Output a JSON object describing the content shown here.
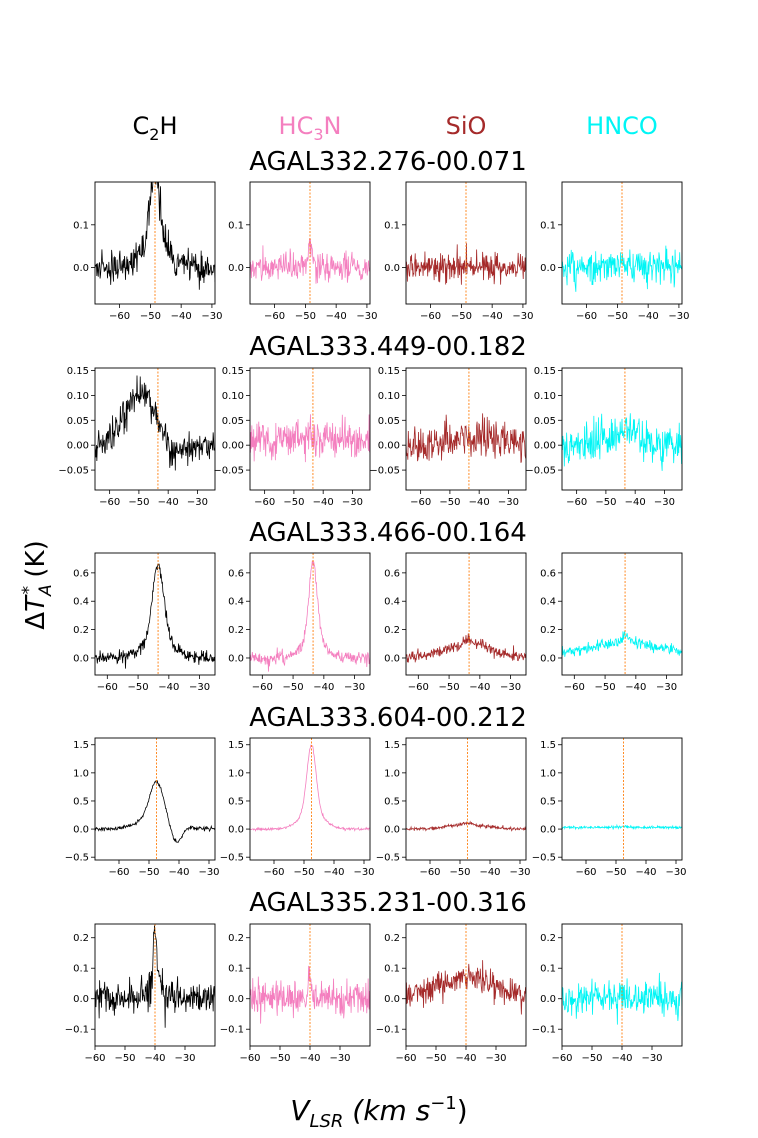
{
  "colors": {
    "C2H": "#000000",
    "HC3N": "#f47fbf",
    "SiO": "#a52a2a",
    "HNCO": "#00f5f5",
    "vline": "#ff7f0e"
  },
  "chart_data": {
    "type": "line",
    "title": "",
    "column_headers": [
      {
        "molecule": "C2H",
        "label_main": "C",
        "label_sub": "2",
        "label_tail": "H"
      },
      {
        "molecule": "HC3N",
        "label_main": "HC",
        "label_sub": "3",
        "label_tail": "N"
      },
      {
        "molecule": "SiO",
        "label_main": "SiO",
        "label_sub": "",
        "label_tail": ""
      },
      {
        "molecule": "HNCO",
        "label_main": "HNCO",
        "label_sub": "",
        "label_tail": ""
      }
    ],
    "ylabel": {
      "prefix": "ΔT",
      "sub": "A",
      "sup": "*",
      "suffix": " (K)"
    },
    "xlabel": {
      "prefix": "V",
      "sub": "LSR",
      "mid": " (km s",
      "sup": "−1",
      "suffix": ")"
    },
    "rows": [
      {
        "source": "AGAL332.276-00.071",
        "vlsr": -48.5,
        "xlim": [
          -68,
          -29
        ],
        "xticks": [
          -60,
          -50,
          -40,
          -30
        ],
        "xtick_labels": [
          "−60",
          "−50",
          "−40",
          "−30"
        ],
        "ylim": [
          -0.085,
          0.2
        ],
        "yticks": [
          0.0,
          0.1
        ],
        "ytick_labels": [
          "0.0",
          "0.1"
        ],
        "label_every_column": true,
        "series": [
          {
            "molecule": "C2H",
            "peak": 0.175,
            "width": 1.6,
            "wing": 0.05,
            "wing_width": 4.5,
            "noise": 0.018,
            "baseline": 0.0,
            "trough": 0,
            "trough_v": 0,
            "broad": 0,
            "broad_width": 0,
            "seed": 11
          },
          {
            "molecule": "HC3N",
            "peak": 0.05,
            "width": 0.8,
            "wing": 0,
            "wing_width": 0,
            "noise": 0.017,
            "baseline": 0.0,
            "trough": 0,
            "trough_v": 0,
            "broad": 0,
            "broad_width": 0,
            "seed": 12
          },
          {
            "molecule": "SiO",
            "peak": 0.0,
            "width": 1,
            "wing": 0,
            "wing_width": 0,
            "noise": 0.016,
            "baseline": 0.0,
            "trough": 0,
            "trough_v": 0,
            "broad": 0,
            "broad_width": 0,
            "seed": 13
          },
          {
            "molecule": "HNCO",
            "peak": 0.02,
            "width": 0.6,
            "wing": 0,
            "wing_width": 0,
            "noise": 0.02,
            "baseline": 0.0,
            "trough": 0,
            "trough_v": 0,
            "broad": 0,
            "broad_width": 0,
            "seed": 14
          }
        ]
      },
      {
        "source": "AGAL333.449-00.182",
        "vlsr": -43.5,
        "xlim": [
          -65,
          -24
        ],
        "xticks": [
          -60,
          -50,
          -40,
          -30
        ],
        "xtick_labels": [
          "−60",
          "−50",
          "−40",
          "−30"
        ],
        "ylim": [
          -0.09,
          0.155
        ],
        "yticks": [
          -0.05,
          0.0,
          0.05,
          0.1,
          0.15
        ],
        "ytick_labels": [
          "−0.05",
          "0.00",
          "0.05",
          "0.10",
          "0.15"
        ],
        "label_every_column": true,
        "series": [
          {
            "molecule": "C2H",
            "peak": 0.11,
            "width": 5.5,
            "wing": 0,
            "wing_width": 0,
            "noise": 0.016,
            "baseline": -0.005,
            "trough": -0.03,
            "trough_v": -38,
            "broad": 0,
            "broad_width": 0,
            "seed": 21,
            "center_shift": -6
          },
          {
            "molecule": "HC3N",
            "peak": 0.02,
            "width": 9,
            "wing": 0,
            "wing_width": 0,
            "noise": 0.02,
            "baseline": 0.0,
            "trough": 0,
            "trough_v": 0,
            "broad": 0,
            "broad_width": 0,
            "seed": 22
          },
          {
            "molecule": "SiO",
            "peak": 0.02,
            "width": 7,
            "wing": 0,
            "wing_width": 0,
            "noise": 0.02,
            "baseline": 0.0,
            "trough": 0,
            "trough_v": 0,
            "broad": 0,
            "broad_width": 0,
            "seed": 23
          },
          {
            "molecule": "HNCO",
            "peak": 0.03,
            "width": 5,
            "wing": 0,
            "wing_width": 0,
            "noise": 0.02,
            "baseline": 0.0,
            "trough": 0,
            "trough_v": 0,
            "broad": 0,
            "broad_width": 0,
            "seed": 24
          }
        ]
      },
      {
        "source": "AGAL333.466-00.164",
        "vlsr": -43.5,
        "xlim": [
          -64,
          -25
        ],
        "xticks": [
          -60,
          -50,
          -40,
          -30
        ],
        "xtick_labels": [
          "−60",
          "−50",
          "−40",
          "−30"
        ],
        "ylim": [
          -0.12,
          0.74
        ],
        "yticks": [
          0.0,
          0.2,
          0.4,
          0.6
        ],
        "ytick_labels": [
          "0.0",
          "0.2",
          "0.4",
          "0.6"
        ],
        "label_every_column": true,
        "series": [
          {
            "molecule": "C2H",
            "peak": 0.5,
            "width": 1.8,
            "wing": 0.14,
            "wing_width": 5,
            "noise": 0.022,
            "baseline": 0.0,
            "trough": 0,
            "trough_v": 0,
            "broad": 0,
            "broad_width": 0,
            "seed": 31
          },
          {
            "molecule": "HC3N",
            "peak": 0.52,
            "width": 1.3,
            "wing": 0.15,
            "wing_width": 3.5,
            "noise": 0.022,
            "baseline": 0.0,
            "trough": 0,
            "trough_v": 0,
            "broad": 0,
            "broad_width": 0,
            "seed": 32
          },
          {
            "molecule": "SiO",
            "peak": 0.04,
            "width": 1.5,
            "wing": 0,
            "wing_width": 0,
            "noise": 0.022,
            "baseline": 0.0,
            "trough": 0,
            "trough_v": 0,
            "broad": 0.09,
            "broad_width": 8,
            "seed": 33
          },
          {
            "molecule": "HNCO",
            "peak": 0.05,
            "width": 1,
            "wing": 0,
            "wing_width": 0,
            "noise": 0.018,
            "baseline": 0.03,
            "trough": 0,
            "trough_v": 0,
            "broad": 0.08,
            "broad_width": 10,
            "seed": 34
          }
        ]
      },
      {
        "source": "AGAL333.604-00.212",
        "vlsr": -47.5,
        "xlim": [
          -68,
          -28
        ],
        "xticks": [
          -60,
          -50,
          -40,
          -30
        ],
        "xtick_labels": [
          "−60",
          "−50",
          "−40",
          "−30"
        ],
        "ylim": [
          -0.55,
          1.62
        ],
        "yticks": [
          -0.5,
          0.0,
          0.5,
          1.0,
          1.5
        ],
        "ytick_labels": [
          "−0.5",
          "0.0",
          "0.5",
          "1.0",
          "1.5"
        ],
        "label_every_column": true,
        "series": [
          {
            "molecule": "C2H",
            "peak": 0.65,
            "width": 2.3,
            "wing": 0.2,
            "wing_width": 6,
            "noise": 0.018,
            "baseline": 0.0,
            "trough": -0.35,
            "trough_v": -41,
            "broad": 0,
            "broad_width": 0,
            "seed": 41
          },
          {
            "molecule": "HC3N",
            "peak": 1.2,
            "width": 1.5,
            "wing": 0.3,
            "wing_width": 4,
            "noise": 0.012,
            "baseline": 0.0,
            "trough": 0,
            "trough_v": 0,
            "broad": 0,
            "broad_width": 0,
            "seed": 42
          },
          {
            "molecule": "SiO",
            "peak": 0.04,
            "width": 1.5,
            "wing": 0,
            "wing_width": 0,
            "noise": 0.015,
            "baseline": 0.0,
            "trough": 0,
            "trough_v": 0,
            "broad": 0.07,
            "broad_width": 7,
            "seed": 43
          },
          {
            "molecule": "HNCO",
            "peak": 0.02,
            "width": 1,
            "wing": 0,
            "wing_width": 0,
            "noise": 0.012,
            "baseline": 0.03,
            "trough": 0,
            "trough_v": 0,
            "broad": 0,
            "broad_width": 0,
            "seed": 44
          }
        ]
      },
      {
        "source": "AGAL335.231-00.316",
        "vlsr": -40.0,
        "xlim": [
          -60,
          -20
        ],
        "xticks": [
          -60,
          -50,
          -40,
          -30
        ],
        "xtick_labels": [
          "−60",
          "−50",
          "−40",
          "−30"
        ],
        "ylim": [
          -0.155,
          0.245
        ],
        "yticks": [
          -0.1,
          0.0,
          0.1,
          0.2
        ],
        "ytick_labels": [
          "−0.1",
          "0.0",
          "0.1",
          "0.2"
        ],
        "label_every_column": true,
        "series": [
          {
            "molecule": "C2H",
            "peak": 0.2,
            "width": 0.6,
            "wing": 0.04,
            "wing_width": 3,
            "noise": 0.028,
            "baseline": 0.0,
            "trough": 0,
            "trough_v": 0,
            "broad": 0,
            "broad_width": 0,
            "seed": 51
          },
          {
            "molecule": "HC3N",
            "peak": 0.09,
            "width": 0.5,
            "wing": 0,
            "wing_width": 0,
            "noise": 0.028,
            "baseline": 0.0,
            "trough": 0,
            "trough_v": 0,
            "broad": 0,
            "broad_width": 0,
            "seed": 52
          },
          {
            "molecule": "SiO",
            "peak": 0.0,
            "width": 1,
            "wing": 0,
            "wing_width": 0,
            "noise": 0.022,
            "baseline": 0.0,
            "trough": 0,
            "trough_v": 0,
            "broad": 0.07,
            "broad_width": 10,
            "seed": 53
          },
          {
            "molecule": "HNCO",
            "peak": 0.02,
            "width": 0.6,
            "wing": 0,
            "wing_width": 0,
            "noise": 0.03,
            "baseline": 0.0,
            "trough": 0,
            "trough_v": 0,
            "broad": 0,
            "broad_width": 0,
            "seed": 54
          }
        ]
      }
    ]
  }
}
